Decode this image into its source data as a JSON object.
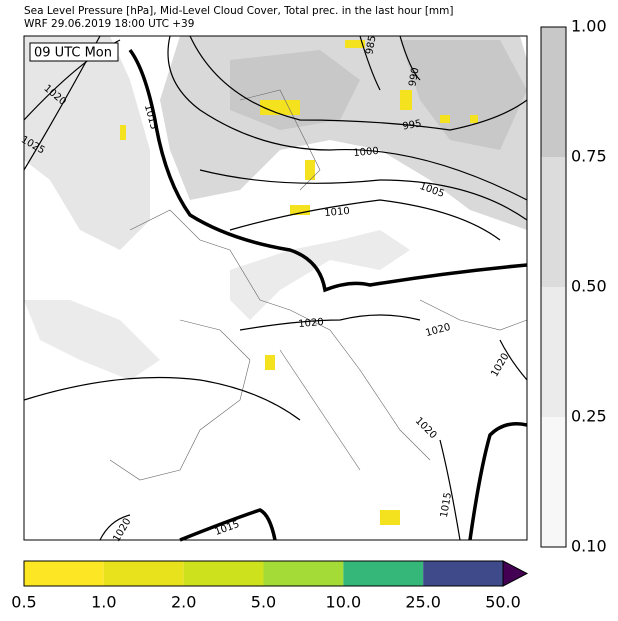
{
  "header": {
    "title": "Sea Level Pressure [hPa], Mid-Level Cloud Cover, Total prec. in the last hour [mm]",
    "subtitle": "WRF 29.06.2019 18:00 UTC +39"
  },
  "map": {
    "time_label": "09 UTC Mon",
    "isobar_labels": [
      "1020",
      "1025",
      "1015",
      "985",
      "990",
      "995",
      "1000",
      "1005",
      "1010",
      "1020",
      "1020",
      "1020",
      "1020",
      "1015",
      "1015",
      "1020"
    ]
  },
  "cloud_colorbar": {
    "ticks": [
      "1.00",
      "0.75",
      "0.50",
      "0.25",
      "0.10"
    ],
    "colors": [
      "#c8c8c8",
      "#dcdcdc",
      "#ebebeb",
      "#f7f7f7"
    ]
  },
  "precip_colorbar": {
    "ticks": [
      "0.5",
      "1.0",
      "2.0",
      "5.0",
      "10.0",
      "25.0",
      "50.0"
    ],
    "colors": [
      "#fde725",
      "#e8e21c",
      "#cde11d",
      "#a5db36",
      "#35b779",
      "#3e4a89",
      "#440154"
    ]
  }
}
